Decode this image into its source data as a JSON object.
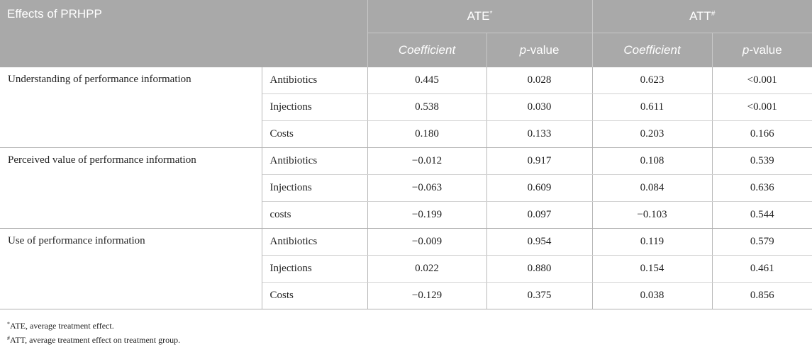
{
  "table": {
    "corner_label": "Effects of PRHPP",
    "groups": [
      {
        "label": "ATE",
        "mark": "*"
      },
      {
        "label": "ATT",
        "mark": "#"
      }
    ],
    "subheaders": [
      {
        "italic": "Coefficient",
        "rest": ""
      },
      {
        "italic": "p",
        "rest": "-value"
      },
      {
        "italic": "Coefficient",
        "rest": ""
      },
      {
        "italic": "p",
        "rest": "-value"
      }
    ],
    "sections": [
      {
        "effect": "Understanding of performance information",
        "rows": [
          {
            "outcome": "Antibiotics",
            "ate_coef": "0.445",
            "ate_p": "0.028",
            "att_coef": "0.623",
            "att_p": "<0.001"
          },
          {
            "outcome": "Injections",
            "ate_coef": "0.538",
            "ate_p": "0.030",
            "att_coef": "0.611",
            "att_p": "<0.001"
          },
          {
            "outcome": "Costs",
            "ate_coef": "0.180",
            "ate_p": "0.133",
            "att_coef": "0.203",
            "att_p": "0.166"
          }
        ]
      },
      {
        "effect": "Perceived value of performance information",
        "rows": [
          {
            "outcome": "Antibiotics",
            "ate_coef": "−0.012",
            "ate_p": "0.917",
            "att_coef": "0.108",
            "att_p": "0.539"
          },
          {
            "outcome": "Injections",
            "ate_coef": "−0.063",
            "ate_p": "0.609",
            "att_coef": "0.084",
            "att_p": "0.636"
          },
          {
            "outcome": "costs",
            "ate_coef": "−0.199",
            "ate_p": "0.097",
            "att_coef": "−0.103",
            "att_p": "0.544"
          }
        ]
      },
      {
        "effect": "Use of performance information",
        "rows": [
          {
            "outcome": "Antibiotics",
            "ate_coef": "−0.009",
            "ate_p": "0.954",
            "att_coef": "0.119",
            "att_p": "0.579"
          },
          {
            "outcome": "Injections",
            "ate_coef": "0.022",
            "ate_p": "0.880",
            "att_coef": "0.154",
            "att_p": "0.461"
          },
          {
            "outcome": "Costs",
            "ate_coef": "−0.129",
            "ate_p": "0.375",
            "att_coef": "0.038",
            "att_p": "0.856"
          }
        ]
      }
    ]
  },
  "footnotes": [
    {
      "mark": "*",
      "text": "ATE, average treatment effect."
    },
    {
      "mark": "#",
      "text": "ATT, average treatment effect on treatment group."
    }
  ]
}
